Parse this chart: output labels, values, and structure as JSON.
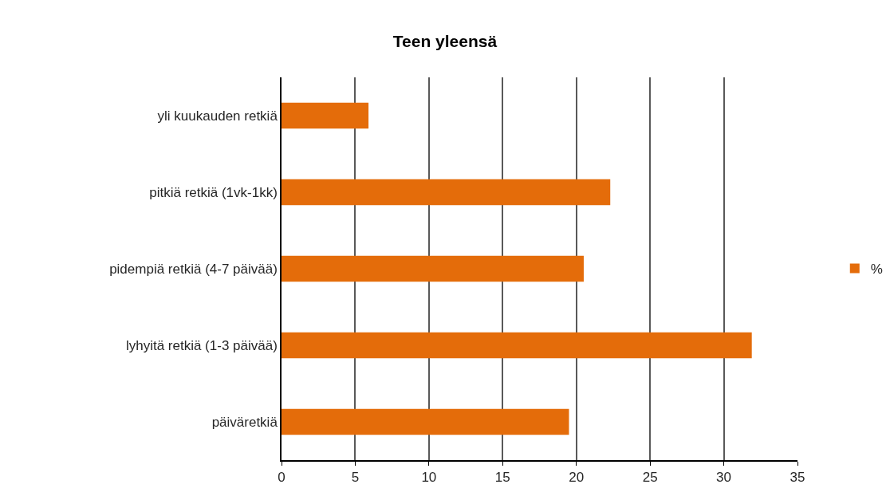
{
  "chart_data": {
    "type": "bar",
    "orientation": "horizontal",
    "title": "Teen yleensä",
    "categories": [
      "yli kuukauden retkiä",
      "pitkiä retkiä (1vk-1kk)",
      "pidempiä retkiä (4-7 päivää)",
      "lyhyitä retkiä (1-3 päivää)",
      "päiväretkiä"
    ],
    "series": [
      {
        "name": "%",
        "color": "#e46c0a",
        "values": [
          5.9,
          22.3,
          20.5,
          31.9,
          19.5
        ]
      }
    ],
    "xlim": [
      0,
      35
    ],
    "xticks": [
      0,
      5,
      10,
      15,
      20,
      25,
      30,
      35
    ],
    "grid": "x",
    "legend": "right"
  }
}
